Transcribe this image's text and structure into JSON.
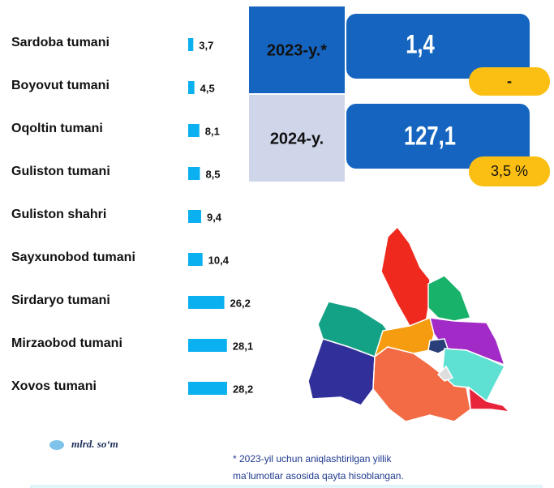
{
  "chart_data": {
    "type": "bar",
    "orientation": "horizontal",
    "categories": [
      "Sardoba tumani",
      "Boyovut tumani",
      "Oqoltin tumani",
      "Guliston tumani",
      "Guliston shahri",
      "Sayxunobod tumani",
      "Sirdaryo tumani",
      "Mirzaobod tumani",
      "Xovos tumani"
    ],
    "values": [
      3.7,
      4.5,
      8.1,
      8.5,
      9.4,
      10.4,
      26.2,
      28.1,
      28.2
    ],
    "value_labels": [
      "3,7",
      "4,5",
      "8,1",
      "8,5",
      "9,4",
      "10,4",
      "26,2",
      "28,1",
      "28,2"
    ],
    "color": "#0ab0ef",
    "unit_label": "mlrd. so‘m"
  },
  "summary": [
    {
      "year": "2023-y.*",
      "value": "1,4",
      "change": "-"
    },
    {
      "year": "2024-y.",
      "value": "127,1",
      "change": "3,5 %"
    }
  ],
  "footnote": [
    "* 2023-yil uchun aniqlashtirilgan yillik",
    "ma’lumotlar asosida qayta hisoblangan."
  ]
}
